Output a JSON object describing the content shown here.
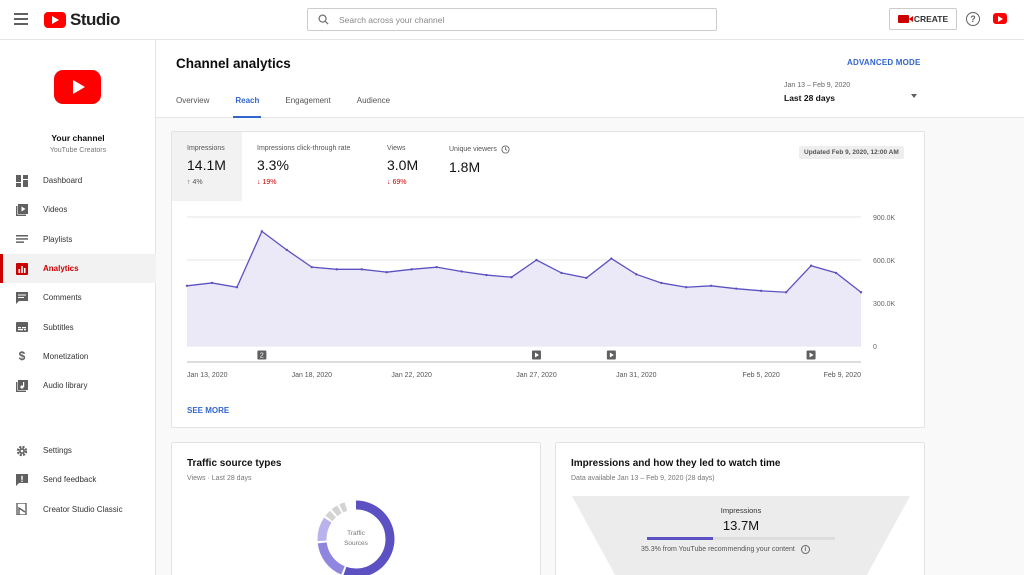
{
  "app": {
    "logo_text": "Studio"
  },
  "search": {
    "placeholder": "Search across your channel"
  },
  "header": {
    "create_label": "CREATE",
    "help_glyph": "?"
  },
  "channel": {
    "name": "Your channel",
    "subtitle": "YouTube Creators"
  },
  "sidebar": {
    "items": [
      {
        "label": "Dashboard",
        "icon": "dashboard-icon"
      },
      {
        "label": "Videos",
        "icon": "videos-icon"
      },
      {
        "label": "Playlists",
        "icon": "playlists-icon"
      },
      {
        "label": "Analytics",
        "icon": "analytics-icon",
        "active": true
      },
      {
        "label": "Comments",
        "icon": "comments-icon"
      },
      {
        "label": "Subtitles",
        "icon": "subtitles-icon"
      },
      {
        "label": "Monetization",
        "icon": "dollar-icon"
      },
      {
        "label": "Audio library",
        "icon": "audio-library-icon"
      }
    ],
    "bottom_items": [
      {
        "label": "Settings",
        "icon": "gear-icon"
      },
      {
        "label": "Send feedback",
        "icon": "feedback-icon"
      },
      {
        "label": "Creator Studio Classic",
        "icon": "classic-studio-icon"
      }
    ]
  },
  "page": {
    "title": "Channel analytics",
    "advanced_mode": "ADVANCED MODE",
    "tabs": [
      "Overview",
      "Reach",
      "Engagement",
      "Audience"
    ],
    "active_tab": "Reach",
    "date_range": "Jan 13 – Feb 9, 2020",
    "date_label": "Last 28 days"
  },
  "metrics": [
    {
      "label": "Impressions",
      "value": "14.1M",
      "delta": "4%",
      "arrow": "↑",
      "direction": "up"
    },
    {
      "label": "Impressions click-through rate",
      "value": "3.3%",
      "delta": "19%",
      "arrow": "↓",
      "direction": "down"
    },
    {
      "label": "Views",
      "value": "3.0M",
      "delta": "69%",
      "arrow": "↓",
      "direction": "down"
    },
    {
      "label": "Unique viewers",
      "value": "1.8M",
      "info_icon": "clock-icon"
    }
  ],
  "updated": "Updated Feb 9, 2020, 12:00 AM",
  "see_more": "SEE MORE",
  "chart_data": {
    "type": "area",
    "x": [
      "Jan 13",
      "Jan 14",
      "Jan 15",
      "Jan 16",
      "Jan 17",
      "Jan 18",
      "Jan 19",
      "Jan 20",
      "Jan 21",
      "Jan 22",
      "Jan 23",
      "Jan 24",
      "Jan 25",
      "Jan 26",
      "Jan 27",
      "Jan 28",
      "Jan 29",
      "Jan 30",
      "Jan 31",
      "Feb 1",
      "Feb 2",
      "Feb 3",
      "Feb 4",
      "Feb 5",
      "Feb 6",
      "Feb 7",
      "Feb 8",
      "Feb 9"
    ],
    "values": [
      420000,
      440000,
      410000,
      800000,
      670000,
      550000,
      535000,
      535000,
      515000,
      535000,
      550000,
      520000,
      495000,
      480000,
      600000,
      510000,
      475000,
      610000,
      500000,
      440000,
      410000,
      420000,
      400000,
      385000,
      375000,
      560000,
      510000,
      375000
    ],
    "x_tick_labels": [
      "Jan 13, 2020",
      "Jan 18, 2020",
      "Jan 22, 2020",
      "Jan 27, 2020",
      "Jan 31, 2020",
      "Feb 5, 2020",
      "Feb 9, 2020"
    ],
    "x_tick_index": [
      0,
      5,
      9,
      14,
      18,
      23,
      27
    ],
    "y_tick_labels": [
      "900.0K",
      "600.0K",
      "300.0K",
      "0"
    ],
    "y_ticks": [
      900000,
      600000,
      300000,
      0
    ],
    "ylim": [
      0,
      900000
    ],
    "grid": true,
    "line_color": "#5c51c2",
    "fill_color": "#ebe9f7",
    "markers": [
      {
        "index": 3,
        "kind": "number",
        "text": "2"
      },
      {
        "index": 14,
        "kind": "play"
      },
      {
        "index": 17,
        "kind": "play"
      },
      {
        "index": 25,
        "kind": "play"
      }
    ]
  },
  "traffic": {
    "title": "Traffic source types",
    "subtitle": "Views · Last 28 days",
    "donut_label": "Traffic Sources"
  },
  "impressions_card": {
    "title": "Impressions and how they led to watch time",
    "subtitle": "Data available Jan 13 – Feb 9, 2020 (28 days)",
    "funnel_title": "Impressions",
    "funnel_value": "13.7M",
    "funnel_progress": 0.353,
    "note": "35.3% from YouTube recommending your content"
  },
  "colors": {
    "accent": "#3366cc",
    "brand": "#ff0000",
    "active_nav": "#cc0000"
  }
}
